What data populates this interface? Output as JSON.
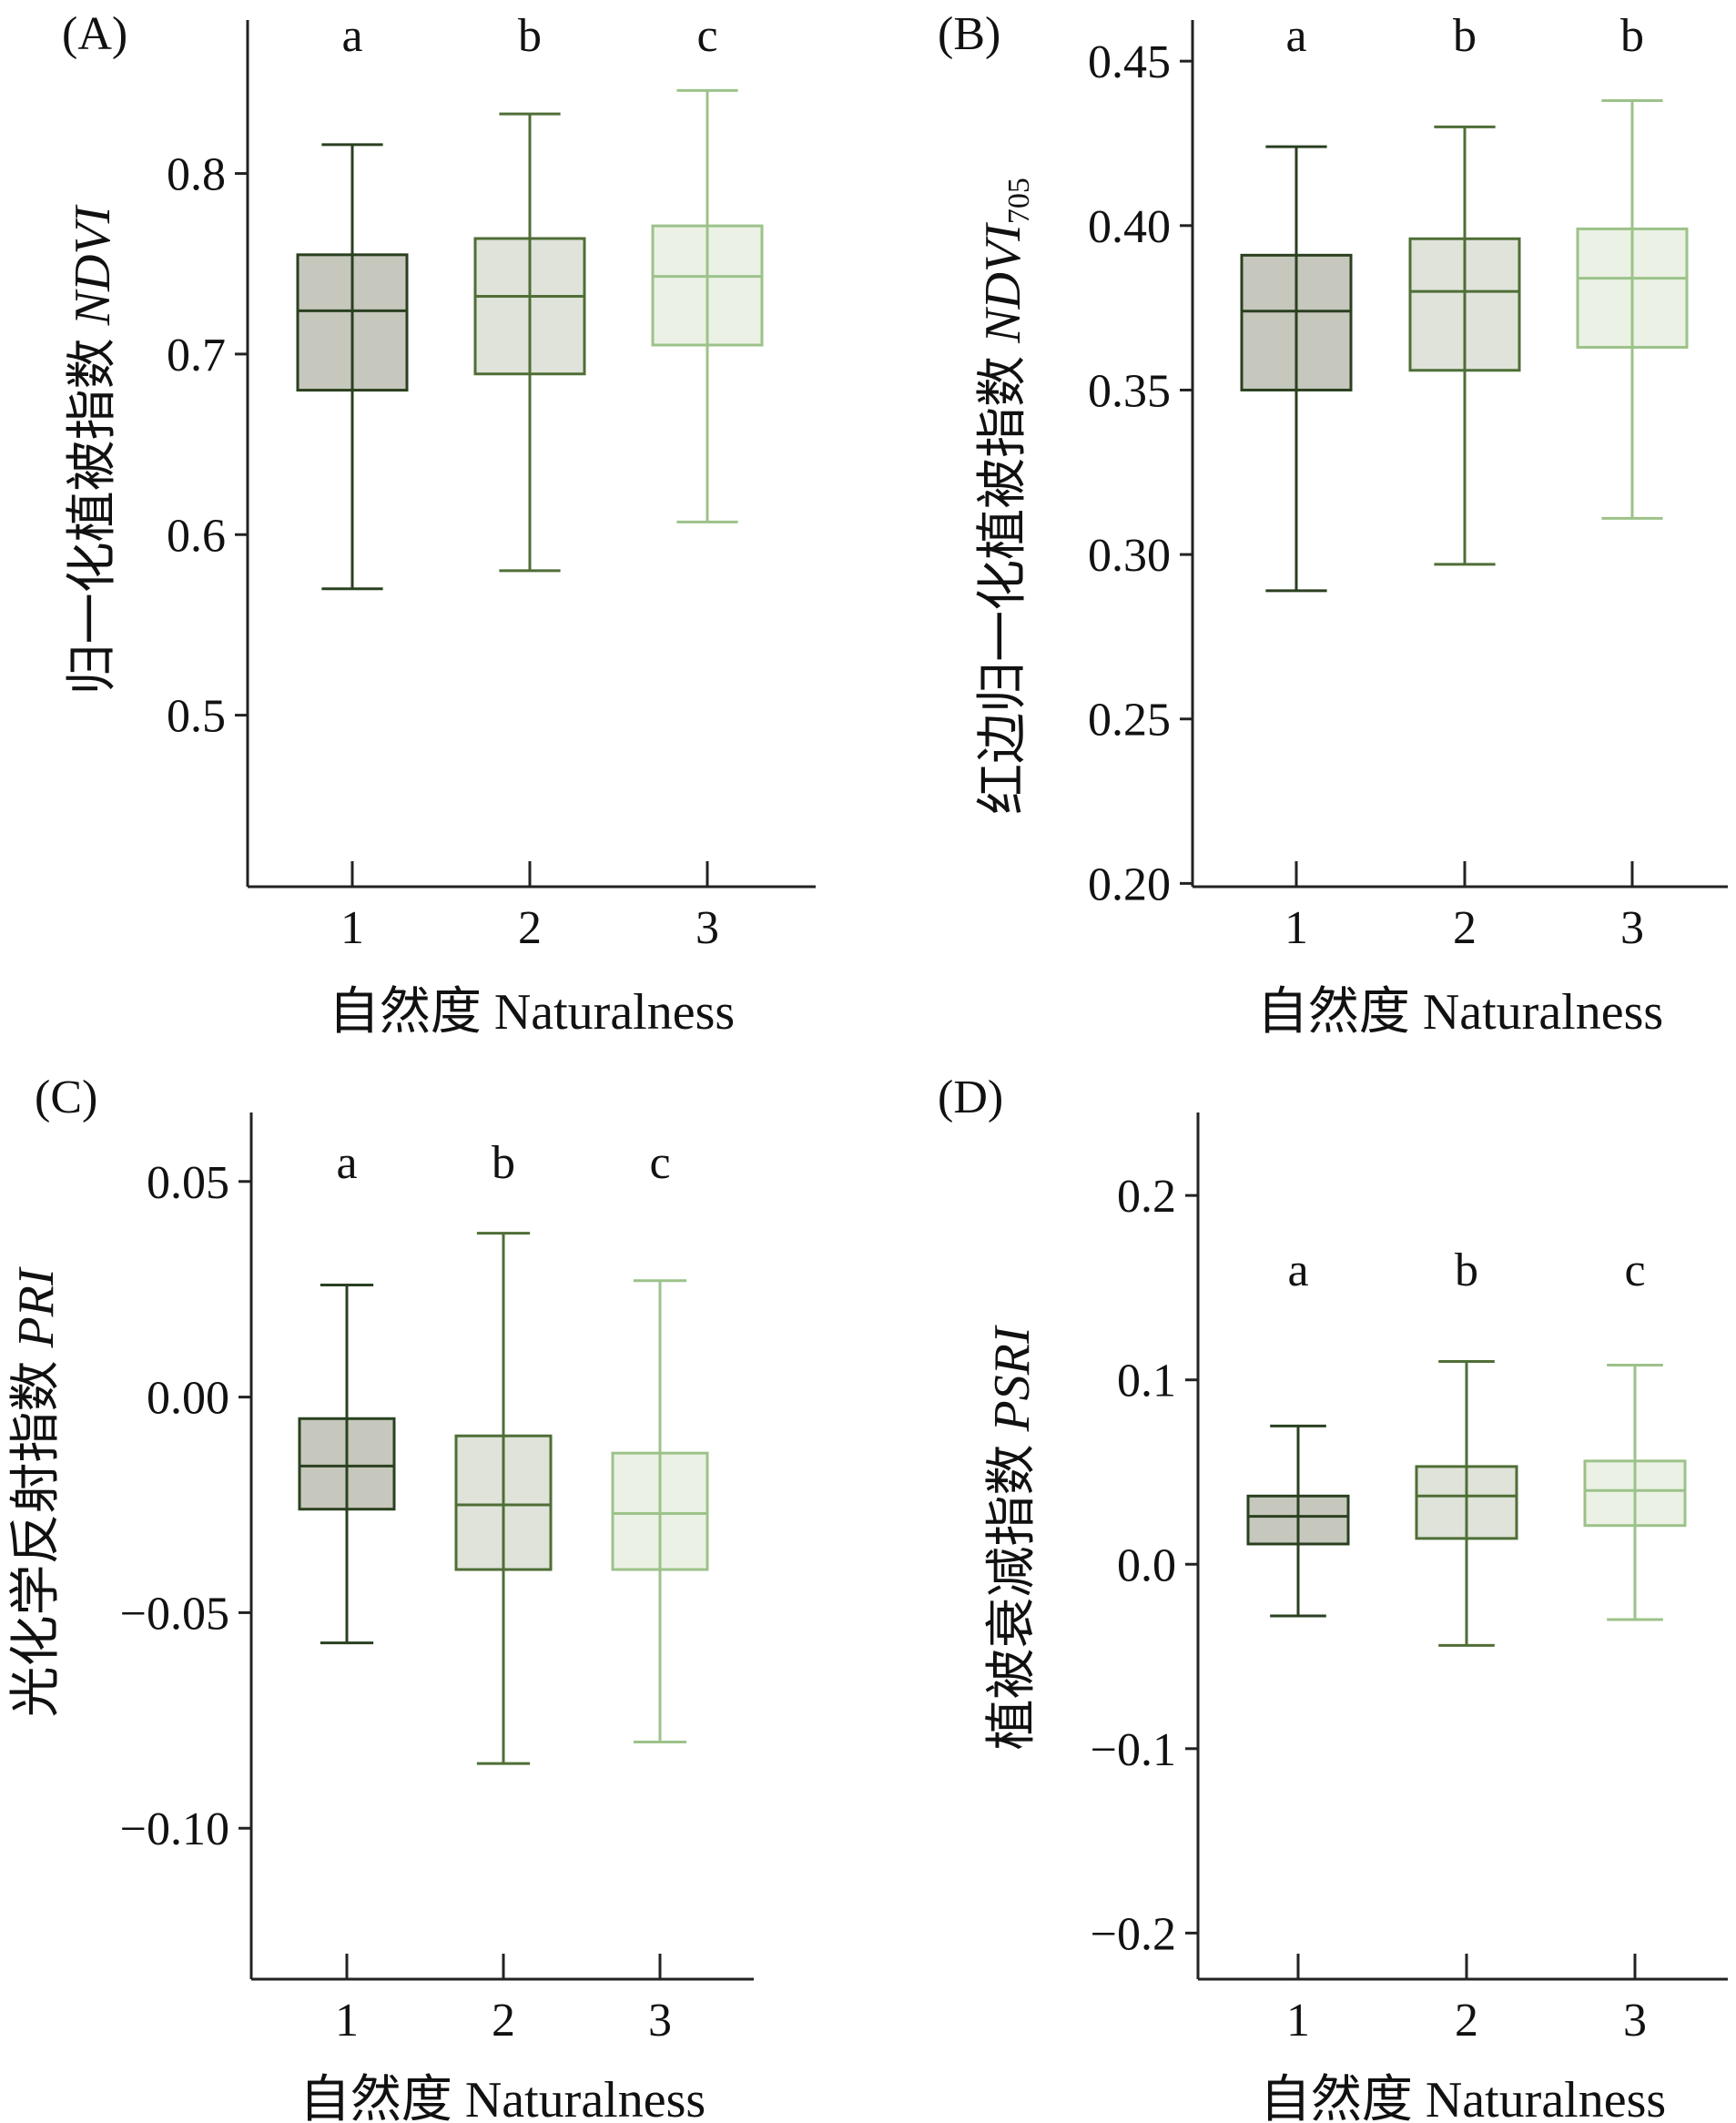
{
  "xlabel": "自然度 Naturalness",
  "colors": {
    "box_fill": [
      "#c6c7bd",
      "#dfe3da",
      "#ebf1e4"
    ],
    "box_stroke": [
      "#2a4020",
      "#4f6e36",
      "#9cc28a"
    ]
  },
  "chart_data": [
    {
      "type": "box",
      "panel": "(A)",
      "ylabel_prefix": "归一化植被指数 ",
      "ylabel_italic": "NDVI",
      "ylabel_sub": "",
      "categories": [
        "1",
        "2",
        "3"
      ],
      "yticks": [
        "0.5",
        "0.6",
        "0.7",
        "0.8"
      ],
      "ylim": [
        0.405,
        0.885
      ],
      "boxes": [
        {
          "min": 0.57,
          "q1": 0.68,
          "median": 0.724,
          "q3": 0.755,
          "max": 0.816
        },
        {
          "min": 0.58,
          "q1": 0.689,
          "median": 0.732,
          "q3": 0.764,
          "max": 0.833
        },
        {
          "min": 0.607,
          "q1": 0.705,
          "median": 0.743,
          "q3": 0.771,
          "max": 0.846
        }
      ],
      "letters": [
        "a",
        "b",
        "c"
      ]
    },
    {
      "type": "box",
      "panel": "(B)",
      "ylabel_prefix": "红边归一化植被指数 ",
      "ylabel_italic": "NDVI",
      "ylabel_sub": "705",
      "categories": [
        "1",
        "2",
        "3"
      ],
      "yticks": [
        "0.20",
        "0.25",
        "0.30",
        "0.35",
        "0.40",
        "0.45"
      ],
      "ylim": [
        0.199,
        0.4625
      ],
      "boxes": [
        {
          "min": 0.289,
          "q1": 0.35,
          "median": 0.374,
          "q3": 0.391,
          "max": 0.424
        },
        {
          "min": 0.297,
          "q1": 0.356,
          "median": 0.38,
          "q3": 0.396,
          "max": 0.43
        },
        {
          "min": 0.311,
          "q1": 0.363,
          "median": 0.384,
          "q3": 0.399,
          "max": 0.438
        }
      ],
      "letters": [
        "a",
        "b",
        "b"
      ]
    },
    {
      "type": "box",
      "panel": "(C)",
      "ylabel_prefix": "光化学反射指数 ",
      "ylabel_italic": "PRI",
      "ylabel_sub": "",
      "categories": [
        "1",
        "2",
        "3"
      ],
      "yticks": [
        "0.05",
        "0.00",
        "−0.05",
        "−0.10"
      ],
      "ylim": [
        -0.135,
        0.066
      ],
      "boxes": [
        {
          "min": -0.057,
          "q1": -0.026,
          "median": -0.016,
          "q3": -0.005,
          "max": 0.026
        },
        {
          "min": -0.085,
          "q1": -0.04,
          "median": -0.025,
          "q3": -0.009,
          "max": 0.038
        },
        {
          "min": -0.08,
          "q1": -0.04,
          "median": -0.027,
          "q3": -0.013,
          "max": 0.027
        }
      ],
      "letters": [
        "a",
        "b",
        "c"
      ]
    },
    {
      "type": "box",
      "panel": "(D)",
      "ylabel_prefix": "植被衰减指数 ",
      "ylabel_italic": "PSRI",
      "ylabel_sub": "",
      "categories": [
        "1",
        "2",
        "3"
      ],
      "yticks": [
        "0.2",
        "0.1",
        "0.0",
        "−0.1",
        "−0.2"
      ],
      "ylim": [
        -0.225,
        0.245
      ],
      "boxes": [
        {
          "min": -0.028,
          "q1": 0.011,
          "median": 0.026,
          "q3": 0.037,
          "max": 0.075
        },
        {
          "min": -0.044,
          "q1": 0.014,
          "median": 0.037,
          "q3": 0.053,
          "max": 0.11
        },
        {
          "min": -0.03,
          "q1": 0.021,
          "median": 0.04,
          "q3": 0.056,
          "max": 0.108
        }
      ],
      "letters": [
        "a",
        "b",
        "c"
      ]
    }
  ]
}
